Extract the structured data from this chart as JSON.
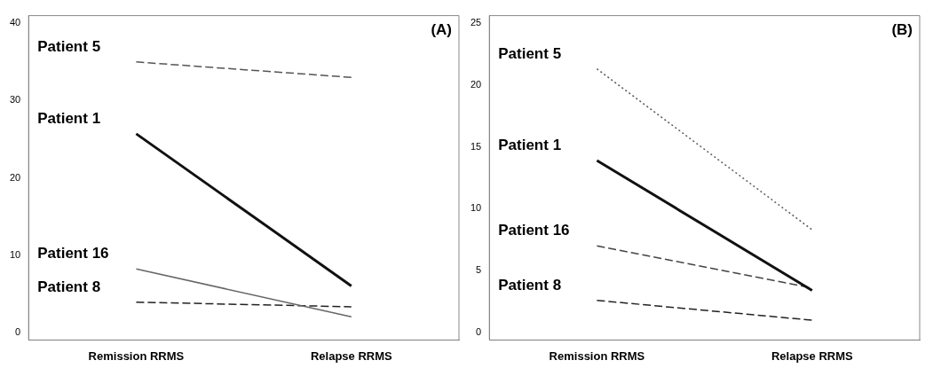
{
  "chart_data": [
    {
      "type": "line",
      "title": "(A)",
      "categories": [
        "Remission RRMS",
        "Relapse RRMS"
      ],
      "ylim": [
        -1,
        41
      ],
      "yticks": [
        0,
        10,
        20,
        30,
        40
      ],
      "grid": false,
      "legend": false,
      "marker": "none",
      "series": [
        {
          "name": "Patient 5",
          "color": "#555555",
          "values": [
            35,
            33
          ],
          "line_style": "dashed"
        },
        {
          "name": "Patient 1",
          "color": "#111111",
          "values": [
            25.7,
            6
          ]
        },
        {
          "name": "Patient 16",
          "color": "#666666",
          "values": [
            8.2,
            2
          ]
        },
        {
          "name": "Patient 8",
          "color": "#222222",
          "values": [
            3.9,
            3.3
          ],
          "line_style": "dashed"
        }
      ]
    },
    {
      "type": "line",
      "title": "(B)",
      "categories": [
        "Remission RRMS",
        "Relapse RRMS"
      ],
      "ylim": [
        -0.6,
        25.6
      ],
      "yticks": [
        0,
        5,
        10,
        15,
        20,
        25
      ],
      "grid": false,
      "legend": false,
      "marker": "none",
      "series": [
        {
          "name": "Patient 5",
          "color": "#555555",
          "values": [
            21.3,
            8.3
          ],
          "line_style": "dotted"
        },
        {
          "name": "Patient 1",
          "color": "#111111",
          "values": [
            13.9,
            3.4
          ]
        },
        {
          "name": "Patient 16",
          "color": "#444444",
          "values": [
            7,
            3.6
          ],
          "line_style": "dashed"
        },
        {
          "name": "Patient 8",
          "color": "#222222",
          "values": [
            2.6,
            1
          ],
          "line_style": "dashed"
        }
      ]
    }
  ]
}
